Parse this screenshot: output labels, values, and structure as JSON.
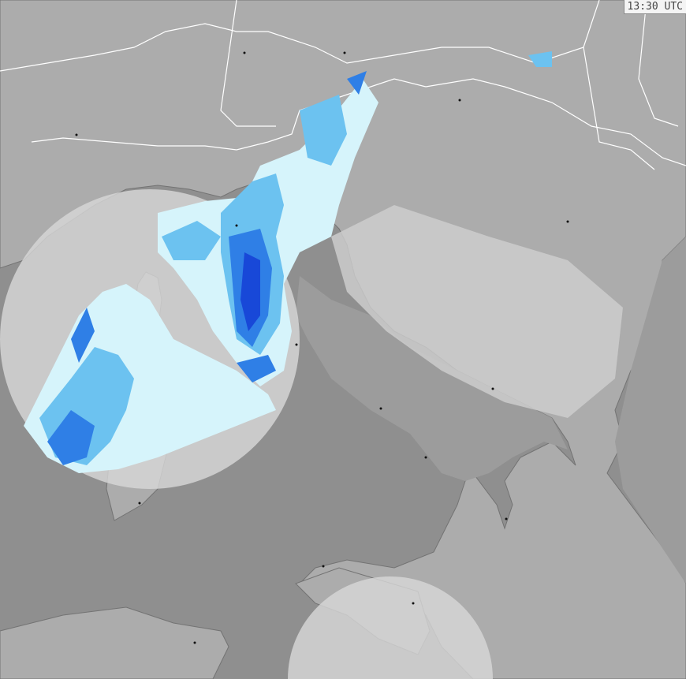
{
  "timestamp": "13:30 UTC",
  "map": {
    "type": "weather-radar",
    "colors": {
      "sea": "#8f8f8f",
      "land": "#acacac",
      "radar_coverage": "#d3d3d3",
      "precip_light": "#d6f4fb",
      "precip_moderate": "#6cc2f0",
      "precip_heavy": "#2f7fe6",
      "precip_intense": "#1848d8",
      "borders": "#ffffff",
      "coast": "#707070"
    }
  }
}
